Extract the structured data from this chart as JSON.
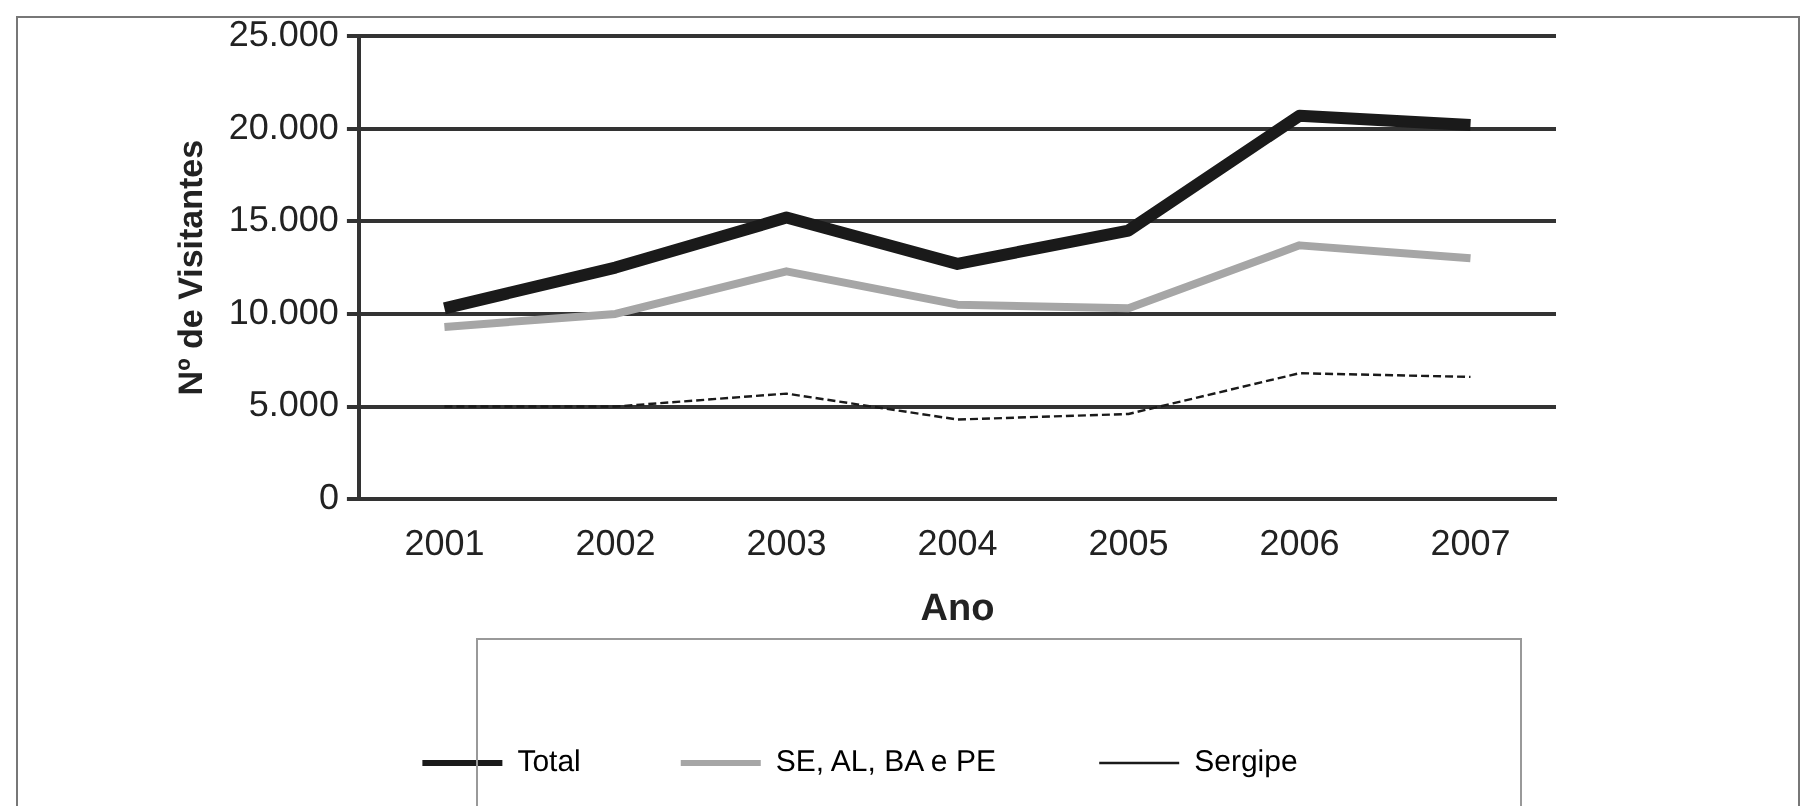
{
  "chart_data": {
    "type": "line",
    "xlabel": "Ano",
    "ylabel": "Nº de Visitantes",
    "categories": [
      "2001",
      "2002",
      "2003",
      "2004",
      "2005",
      "2006",
      "2007"
    ],
    "series": [
      {
        "name": "Total",
        "color": "#1a1a1a",
        "values": [
          10300,
          12500,
          15200,
          12700,
          14500,
          20700,
          20200
        ],
        "line_style": "solid"
      },
      {
        "name": "SE, AL, BA e PE",
        "color": "#a6a6a6",
        "values": [
          9300,
          10000,
          12300,
          10500,
          10300,
          13700,
          13000
        ],
        "line_style": "solid"
      },
      {
        "name": "Sergipe",
        "color": "#1a1a1a",
        "values": [
          5000,
          5000,
          5700,
          4300,
          4600,
          6800,
          6600
        ],
        "line_style": "dashed"
      }
    ],
    "ylim": [
      0,
      25000
    ],
    "yticks": [
      0,
      {
        "value": 5000,
        "label": "5.000"
      },
      {
        "value": 10000,
        "label": "10.000"
      },
      {
        "value": 15000,
        "label": "15.000"
      },
      {
        "value": 20000,
        "label": "20.000"
      },
      {
        "value": 25000,
        "label": "25.000"
      }
    ],
    "grid": "y",
    "legend": "bottom",
    "marker": "none"
  }
}
